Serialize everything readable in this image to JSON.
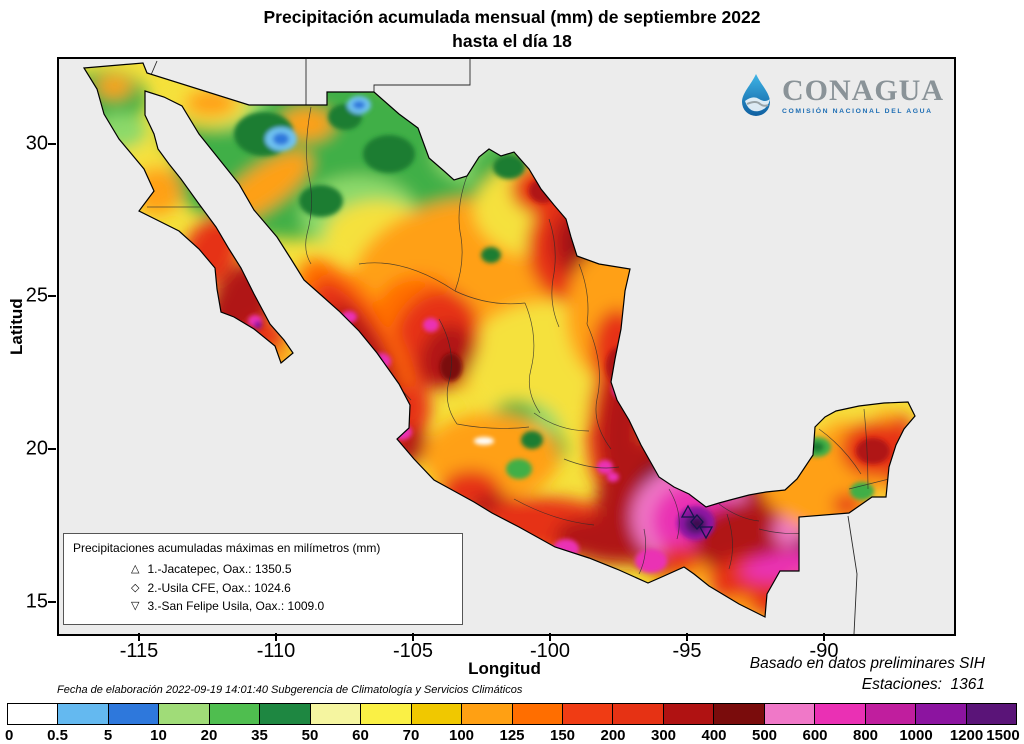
{
  "title": {
    "line1": "Precipitación acumulada mensual (mm) de septiembre 2022",
    "line2": "hasta el día 18"
  },
  "logo": {
    "name": "CONAGUA",
    "subtitle": "COMISIÓN NACIONAL DEL AGUA"
  },
  "axes": {
    "x_label": "Longitud",
    "y_label": "Latitud",
    "x_ticks": [
      "-115",
      "-110",
      "-105",
      "-100",
      "-95",
      "-90"
    ],
    "y_ticks": [
      "30",
      "25",
      "20",
      "15"
    ]
  },
  "map_legend": {
    "title": "Precipitaciones acumuladas máximas en milímetros (mm)",
    "entries": [
      {
        "symbol": "△",
        "label": "1.-Jacatepec, Oax.: 1350.5"
      },
      {
        "symbol": "◇",
        "label": "2.-Usila CFE, Oax.: 1024.6"
      },
      {
        "symbol": "▽",
        "label": "3.-San Felipe Usila, Oax.: 1009.0"
      }
    ]
  },
  "annotations": {
    "elaboration": "Fecha de elaboración 2022-09-19 14:01:40 Subgerencia de Climatología y Servicios Climáticos",
    "source": "Basado en datos preliminares SIH",
    "stations": "Estaciones:  1361"
  },
  "colorbar": {
    "labels": [
      "0",
      "0.5",
      "5",
      "10",
      "20",
      "35",
      "50",
      "60",
      "70",
      "100",
      "125",
      "150",
      "200",
      "300",
      "400",
      "500",
      "600",
      "800",
      "1000",
      "1200",
      "1500"
    ],
    "colors": [
      "#FFFFFF",
      "#64B9F0",
      "#2E78DC",
      "#A0DC78",
      "#4FBE4F",
      "#1E8741",
      "#F5F5A0",
      "#FAF045",
      "#F0C800",
      "#FFA013",
      "#FF6E00",
      "#F03C14",
      "#E63214",
      "#B01212",
      "#7A0C0C",
      "#F078C8",
      "#EA30B4",
      "#C01E9E",
      "#8C14A0",
      "#5A1478"
    ]
  },
  "chart_data": {
    "type": "heatmap",
    "title": "Precipitación acumulada mensual (mm) de septiembre 2022 hasta el día 18",
    "xlabel": "Longitud",
    "ylabel": "Latitud",
    "xlim": [
      -118,
      -85.3
    ],
    "ylim": [
      14,
      32.9
    ],
    "x_ticks": [
      -115,
      -110,
      -105,
      -100,
      -95,
      -90
    ],
    "y_ticks": [
      15,
      20,
      25,
      30
    ],
    "scale_mm_boundaries": [
      0,
      0.5,
      5,
      10,
      20,
      35,
      50,
      60,
      70,
      100,
      125,
      150,
      200,
      300,
      400,
      500,
      600,
      800,
      1000,
      1200,
      1500
    ],
    "scale_colors": [
      "#FFFFFF",
      "#64B9F0",
      "#2E78DC",
      "#A0DC78",
      "#4FBE4F",
      "#1E8741",
      "#F5F5A0",
      "#FAF045",
      "#F0C800",
      "#FFA013",
      "#FF6E00",
      "#F03C14",
      "#E63214",
      "#B01212",
      "#7A0C0C",
      "#F078C8",
      "#EA30B4",
      "#C01E9E",
      "#8C14A0",
      "#5A1478"
    ],
    "legend_position": "bottom",
    "max_stations": [
      {
        "rank": 1,
        "marker": "triangle-up",
        "name": "Jacatepec, Oax.",
        "value_mm": 1350.5
      },
      {
        "rank": 2,
        "marker": "diamond",
        "name": "Usila CFE, Oax.",
        "value_mm": 1024.6
      },
      {
        "rank": 3,
        "marker": "triangle-down",
        "name": "San Felipe Usila, Oax.",
        "value_mm": 1009.0
      }
    ],
    "stations_count": 1361,
    "data_source": "Basado en datos preliminares SIH"
  }
}
